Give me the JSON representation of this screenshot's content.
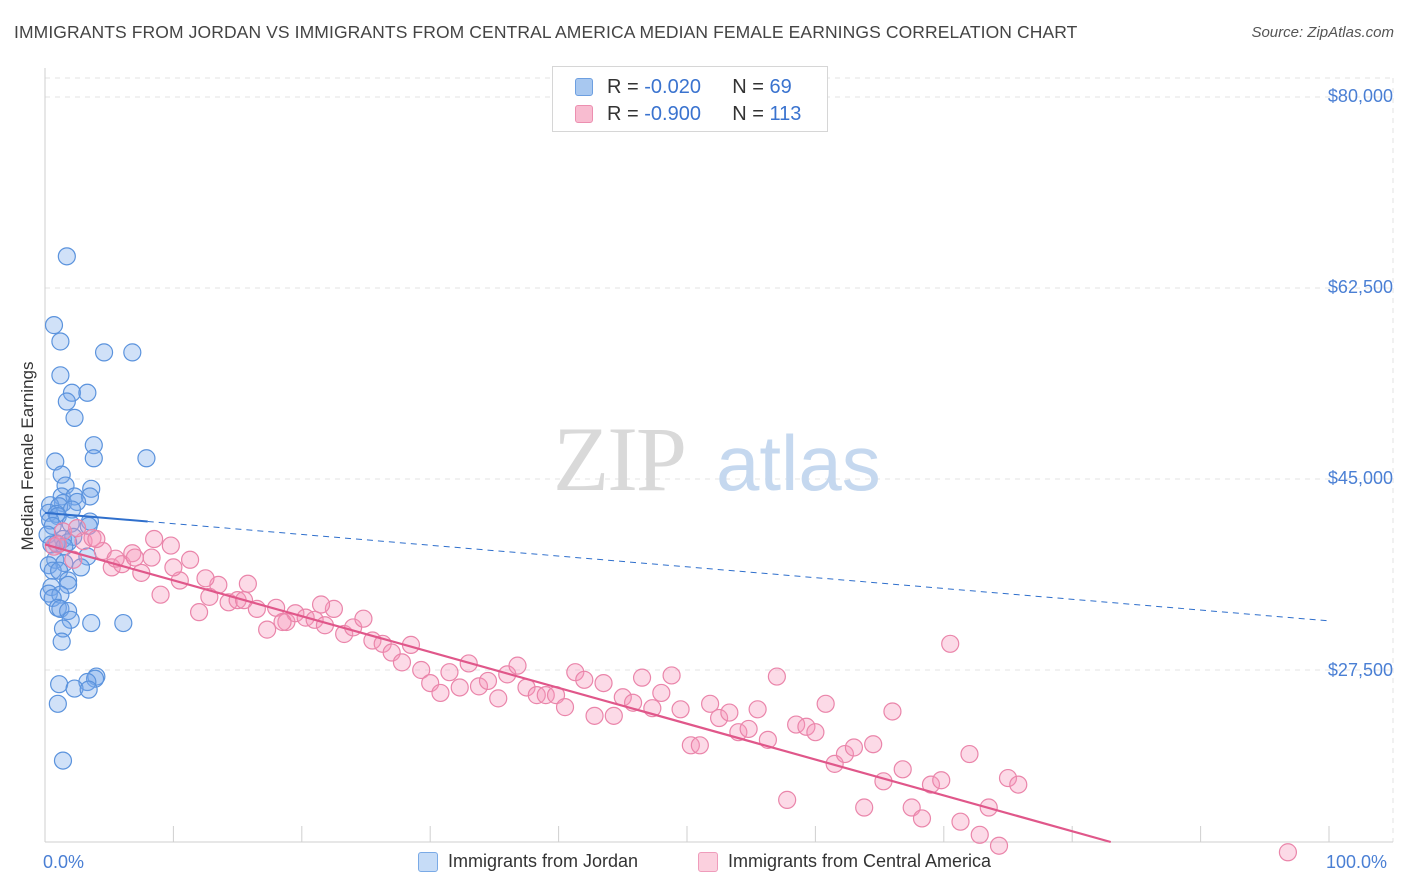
{
  "title": "IMMIGRANTS FROM JORDAN VS IMMIGRANTS FROM CENTRAL AMERICA MEDIAN FEMALE EARNINGS CORRELATION CHART",
  "source": "Source: ZipAtlas.com",
  "watermark": "ZIPatlas",
  "legend": {
    "r_label": "R =",
    "n_label": "N =",
    "rows": [
      {
        "r": "-0.020",
        "n": "69",
        "color": "#a8c8f0",
        "border": "#6d9fe0"
      },
      {
        "r": "-0.900",
        "n": "113",
        "color": "#f8bcd0",
        "border": "#ec8fb0"
      }
    ]
  },
  "colors": {
    "jordan_fill": "rgba(120,170,235,0.35)",
    "jordan_stroke": "#5b93dd",
    "jordan_line": "#2f6fcc",
    "ca_fill": "rgba(245,150,185,0.35)",
    "ca_stroke": "#ea85aa",
    "ca_line": "#e0578a",
    "grid": "#e3e3e3",
    "tick_text": "#4a7fd4"
  },
  "chart_data": {
    "type": "scatter",
    "title": "IMMIGRANTS FROM JORDAN VS IMMIGRANTS FROM CENTRAL AMERICA MEDIAN FEMALE EARNINGS CORRELATION CHART",
    "xlabel": "",
    "ylabel": "Median Female Earnings",
    "xlim": [
      0,
      100
    ],
    "ylim": [
      10000,
      85000
    ],
    "x_tick_labels": [
      "0.0%",
      "100.0%"
    ],
    "y_ticks": [
      27500,
      45000,
      62500,
      80000
    ],
    "y_tick_labels": [
      "$27,500",
      "$45,000",
      "$62,500",
      "$80,000"
    ],
    "grid": true,
    "legend_position": "bottom",
    "series": [
      {
        "name": "Immigrants from Jordan",
        "x": [
          1.7,
          0.7,
          4.6,
          1.2,
          6.8,
          1.2,
          2.1,
          3.3,
          1.7,
          2.3,
          3.8,
          7.9,
          0.8,
          3.8,
          1.3,
          1.6,
          3.6,
          1.3,
          2.3,
          3.5,
          1.4,
          2.5,
          0.4,
          1.1,
          2.1,
          0.3,
          0.9,
          1.0,
          0.4,
          3.5,
          2.0,
          3.4,
          0.6,
          0.2,
          2.2,
          1.4,
          1.8,
          0.9,
          0.5,
          1.5,
          3.3,
          0.8,
          1.5,
          0.3,
          2.8,
          0.6,
          1.1,
          1.8,
          0.5,
          1.8,
          0.3,
          1.2,
          0.6,
          1.0,
          1.2,
          1.8,
          2.0,
          3.6,
          6.1,
          1.4,
          1.3,
          4.0,
          3.9,
          3.3,
          1.1,
          2.3,
          3.4,
          1.0,
          1.4
        ],
        "y": [
          65400,
          59100,
          56600,
          57600,
          56600,
          54500,
          52900,
          52900,
          52100,
          50600,
          48100,
          46900,
          46600,
          46900,
          45400,
          44400,
          44100,
          43400,
          43400,
          43400,
          42800,
          42900,
          42600,
          42500,
          42200,
          41900,
          41800,
          41600,
          41200,
          41100,
          40900,
          40700,
          40700,
          39900,
          39700,
          39500,
          39200,
          39100,
          39000,
          38800,
          37900,
          37600,
          37300,
          37100,
          36900,
          36600,
          36600,
          35700,
          35100,
          35300,
          34500,
          34400,
          34100,
          33200,
          33100,
          32900,
          32100,
          31800,
          31800,
          31300,
          30100,
          26900,
          26700,
          26400,
          26200,
          25800,
          25700,
          24400,
          19200
        ]
      },
      {
        "name": "Immigrants from Central America",
        "x": [
          0.7,
          1.4,
          2.2,
          3.0,
          3.7,
          4.5,
          5.2,
          6.0,
          6.8,
          7.5,
          8.3,
          9.0,
          9.8,
          10.5,
          11.3,
          12.0,
          12.8,
          13.5,
          14.3,
          15.0,
          15.8,
          16.5,
          17.3,
          18.0,
          18.8,
          19.5,
          20.3,
          21.0,
          21.8,
          22.5,
          23.3,
          24.0,
          24.8,
          25.5,
          26.3,
          27.0,
          27.8,
          28.5,
          29.3,
          30.0,
          30.8,
          31.5,
          32.3,
          33.0,
          33.8,
          34.5,
          35.3,
          36.0,
          36.8,
          37.5,
          38.3,
          39.0,
          39.8,
          40.5,
          41.3,
          42.0,
          42.8,
          43.5,
          44.3,
          45.0,
          45.8,
          46.5,
          47.3,
          48.0,
          48.8,
          49.5,
          50.3,
          51.0,
          51.8,
          52.5,
          53.3,
          54.0,
          54.8,
          55.5,
          56.3,
          57.0,
          57.8,
          58.5,
          59.3,
          60.0,
          60.8,
          61.5,
          62.3,
          63.0,
          63.8,
          64.5,
          65.3,
          66.0,
          66.8,
          67.5,
          68.3,
          69.0,
          69.8,
          70.5,
          71.3,
          72.0,
          72.8,
          73.5,
          74.3,
          75.0,
          75.8,
          1.0,
          2.5,
          4.0,
          5.5,
          7.0,
          8.5,
          10.0,
          12.5,
          15.5,
          18.5,
          21.5,
          96.8
        ],
        "y": [
          38800,
          40200,
          37600,
          39300,
          39600,
          38400,
          36900,
          37200,
          38200,
          36400,
          37800,
          34400,
          38900,
          35700,
          37600,
          32800,
          34200,
          35300,
          33700,
          33900,
          35400,
          33100,
          31200,
          33200,
          31900,
          32700,
          32300,
          32100,
          31600,
          33100,
          30800,
          31400,
          32200,
          30200,
          29900,
          29100,
          28200,
          29800,
          27500,
          26300,
          25400,
          27300,
          25900,
          28100,
          26000,
          26500,
          24900,
          27100,
          27900,
          25900,
          25200,
          25200,
          25200,
          24100,
          27300,
          26600,
          23300,
          26300,
          23300,
          25000,
          24500,
          26800,
          24000,
          25400,
          27000,
          23900,
          20600,
          20600,
          24400,
          23100,
          23600,
          21800,
          22100,
          23900,
          21100,
          26900,
          15600,
          22500,
          22300,
          21800,
          24400,
          18900,
          19800,
          20400,
          14900,
          20700,
          17300,
          23700,
          18400,
          14900,
          13900,
          17000,
          17400,
          29900,
          13600,
          19800,
          12400,
          14900,
          11400,
          17600,
          17000,
          39000,
          40500,
          39500,
          37700,
          37800,
          39500,
          36900,
          35900,
          33900,
          31900,
          33500,
          10800
        ]
      }
    ],
    "trend_lines": [
      {
        "series": "Immigrants from Jordan",
        "x": [
          0,
          100
        ],
        "y": [
          41900,
          32000
        ],
        "solid_to_x": 8
      },
      {
        "series": "Immigrants from Central America",
        "x": [
          0,
          83
        ],
        "y": [
          39000,
          10000
        ]
      }
    ]
  },
  "bottom_legend": [
    {
      "label": "Immigrants from Jordan",
      "color": "#c6dcf7",
      "border": "#7aaae6"
    },
    {
      "label": "Immigrants from Central America",
      "color": "#fbd0de",
      "border": "#ef9cbb"
    }
  ]
}
